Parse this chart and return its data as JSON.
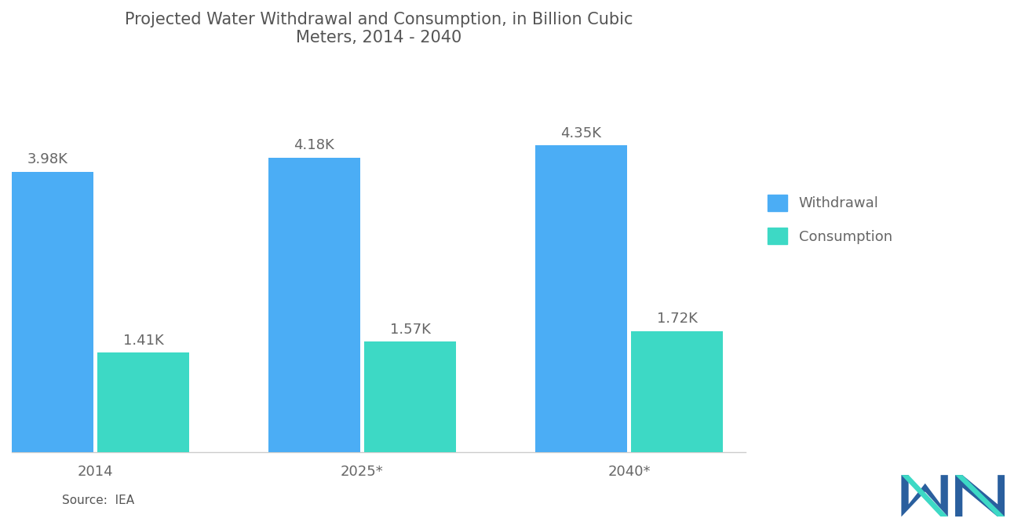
{
  "title": "Projected Water Withdrawal and Consumption, in Billion Cubic\nMeters, 2014 - 2040",
  "title_fontsize": 15,
  "title_color": "#555555",
  "categories": [
    "2014",
    "2025*",
    "2040*"
  ],
  "withdrawal_values": [
    3980,
    4180,
    4350
  ],
  "consumption_values": [
    1410,
    1570,
    1720
  ],
  "withdrawal_labels": [
    "3.98K",
    "4.18K",
    "4.35K"
  ],
  "consumption_labels": [
    "1.41K",
    "1.57K",
    "1.72K"
  ],
  "withdrawal_color": "#4BADF5",
  "consumption_color": "#3DD9C5",
  "background_color": "#ffffff",
  "ylim": [
    0,
    5500
  ],
  "legend_labels": [
    "Withdrawal",
    "Consumption"
  ],
  "source_text": "Source:  IEA",
  "label_fontsize": 13,
  "tick_fontsize": 13,
  "legend_fontsize": 13
}
